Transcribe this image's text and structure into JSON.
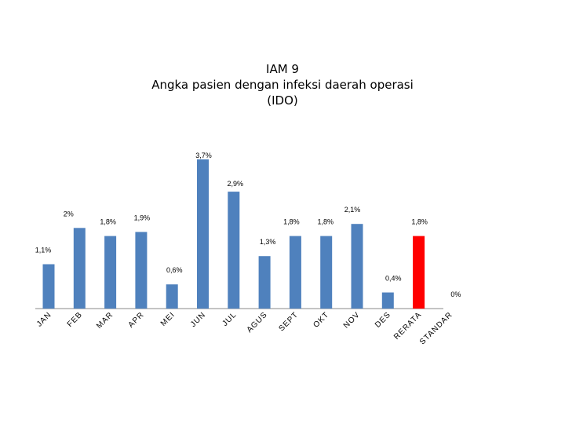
{
  "chart_data": {
    "type": "bar",
    "title_lines": [
      "IAM 9",
      "Angka pasien dengan infeksi daerah operasi",
      "(IDO)"
    ],
    "xlabel": "",
    "ylabel": "",
    "categories": [
      "JAN",
      "FEB",
      "MAR",
      "APR",
      "MEI",
      "JUN",
      "JUL",
      "AGUS",
      "SEPT",
      "OKT",
      "NOV",
      "DES",
      "RERATA",
      "STANDAR"
    ],
    "values": [
      1.1,
      2.0,
      1.8,
      1.9,
      0.6,
      3.7,
      2.9,
      1.3,
      1.8,
      1.8,
      2.1,
      0.4,
      1.8,
      0
    ],
    "data_labels": [
      "1,1%",
      "2%",
      "1,8%",
      "1,9%",
      "0,6%",
      "3,7%",
      "2,9%",
      "1,3%",
      "1,8%",
      "1,8%",
      "2,1%",
      "0,4%",
      "1,8%",
      "0%"
    ],
    "ylim": [
      0,
      4
    ],
    "grid": false,
    "legend": "none",
    "colors": {
      "bar": "#4F81BD",
      "highlight": "#FF0000",
      "highlight_index": 12,
      "axis": "#888888"
    }
  }
}
